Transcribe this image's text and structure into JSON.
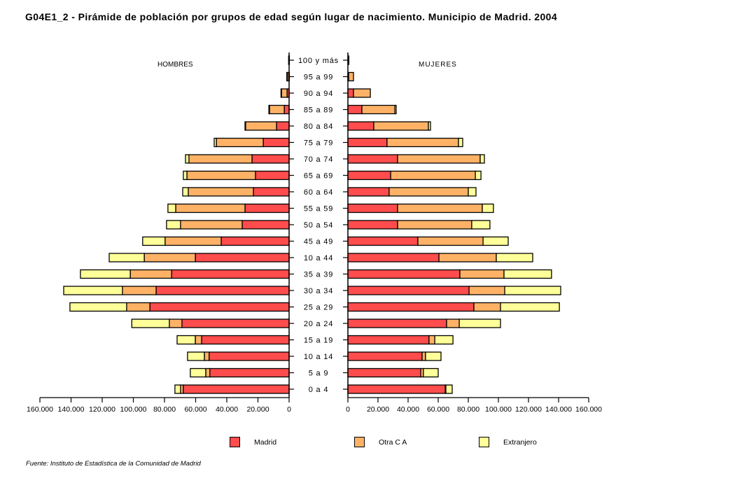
{
  "title": "G04E1_2 - Pirámide de población por grupos de edad según lugar de nacimiento. Municipio de Madrid. 2004",
  "source": "Fuente: Instituto de Estadística de la Comunidad de Madrid",
  "chart_data": {
    "type": "bar",
    "subtype": "population-pyramid-stacked",
    "title": "G04E1_2 - Pirámide de población por grupos de edad según lugar de nacimiento. Municipio de Madrid. 2004",
    "left_panel_label": "HOMBRES",
    "right_panel_label": "MUJERES",
    "categories": [
      "100 y más",
      "95 a 99",
      "90 a 94",
      "85 a 89",
      "80 a 84",
      "75 a 79",
      "70 a 74",
      "65 a 69",
      "60 a 64",
      "55 a 59",
      "50 a 54",
      "45 a 49",
      "10 a  44",
      "35 a 39",
      "30 a 34",
      "25 a 29",
      "20 a 24",
      "15 a 19",
      "10 a 14",
      "5 a 9",
      "0 a 4"
    ],
    "xlim": [
      0,
      160000
    ],
    "x_ticks_left": [
      "160.000",
      "140.000",
      "120.000",
      "100.000",
      "80.000",
      "60.000",
      "40.000",
      "20.000",
      "0"
    ],
    "x_ticks_right": [
      "0",
      "20.000",
      "40.000",
      "60.000",
      "80.000",
      "100.000",
      "120.000",
      "140.000",
      "160.000"
    ],
    "x_tick_values": [
      0,
      20000,
      40000,
      60000,
      80000,
      100000,
      120000,
      140000,
      160000
    ],
    "series_colors": {
      "Madrid": "#ff4c4c",
      "Otra C A": "#ffb266",
      "Extranjero": "#ffff99"
    },
    "legend": [
      "Madrid",
      "Otra C A",
      "Extranjero"
    ],
    "legend_position": "bottom",
    "hombres": {
      "series": [
        {
          "name": "Madrid",
          "values": [
            200,
            200,
            1300,
            3100,
            8100,
            16600,
            23800,
            21600,
            22900,
            28300,
            30100,
            43600,
            60200,
            75500,
            85400,
            89400,
            68800,
            56200,
            51400,
            50900,
            68000
          ]
        },
        {
          "name": "Otra C A",
          "values": [
            100,
            1100,
            3600,
            9500,
            19800,
            30100,
            40500,
            44000,
            41800,
            44500,
            39600,
            36000,
            32800,
            26500,
            21600,
            14900,
            8100,
            4000,
            3000,
            2600,
            1700
          ]
        },
        {
          "name": "Extranjero",
          "values": [
            0,
            200,
            300,
            400,
            400,
            1400,
            2200,
            2300,
            3600,
            5000,
            9000,
            14400,
            22500,
            32000,
            37700,
            36400,
            24100,
            11700,
            10800,
            9900,
            3600
          ]
        }
      ]
    },
    "mujeres": {
      "series": [
        {
          "name": "Madrid",
          "values": [
            300,
            500,
            3700,
            9300,
            17200,
            26000,
            33000,
            28400,
            27400,
            33000,
            33000,
            46500,
            60500,
            74400,
            80500,
            83700,
            65600,
            53900,
            49300,
            48400,
            64700
          ]
        },
        {
          "name": "Otra C A",
          "values": [
            200,
            3200,
            11200,
            21900,
            36300,
            47500,
            54900,
            56300,
            52600,
            56300,
            49300,
            43300,
            38100,
            29300,
            23700,
            17700,
            8400,
            3800,
            2300,
            1800,
            400
          ]
        },
        {
          "name": "Extranjero",
          "values": [
            0,
            0,
            0,
            900,
            1400,
            2800,
            2800,
            3700,
            5100,
            7400,
            12100,
            16700,
            24200,
            31600,
            37200,
            39100,
            27400,
            12100,
            10300,
            9800,
            4200
          ]
        }
      ]
    }
  }
}
